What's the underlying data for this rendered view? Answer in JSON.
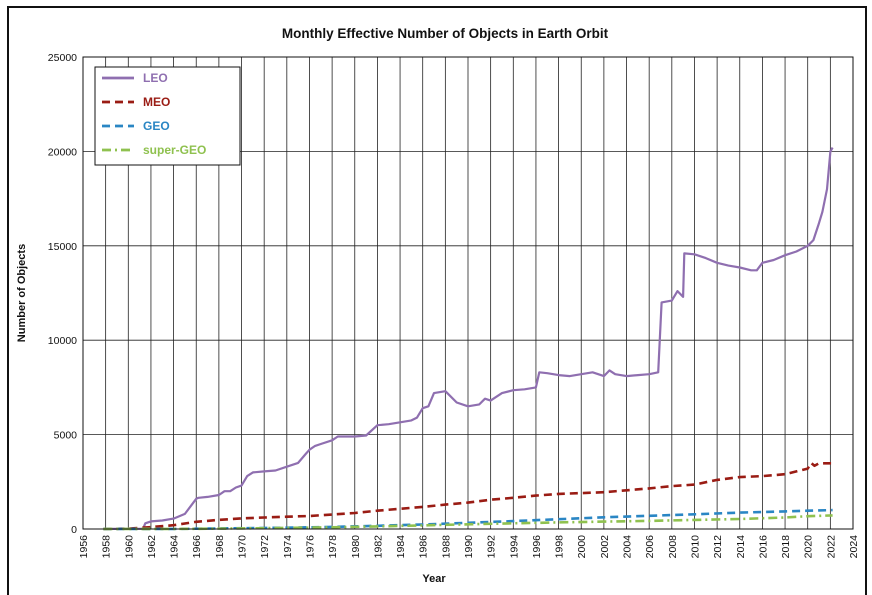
{
  "chart_data": {
    "type": "line",
    "title": "Monthly Effective Number of Objects in Earth Orbit",
    "xlabel": "Year",
    "ylabel": "Number of Objects",
    "xlim": [
      1956,
      2024
    ],
    "ylim": [
      0,
      25000
    ],
    "x_ticks": [
      "1956",
      "1958",
      "1960",
      "1962",
      "1964",
      "1966",
      "1968",
      "1970",
      "1972",
      "1974",
      "1976",
      "1978",
      "1980",
      "1982",
      "1984",
      "1986",
      "1988",
      "1990",
      "1992",
      "1994",
      "1996",
      "1998",
      "2000",
      "2002",
      "2004",
      "2006",
      "2008",
      "2010",
      "2012",
      "2014",
      "2016",
      "2018",
      "2020",
      "2022",
      "2024"
    ],
    "y_ticks": [
      "0",
      "5000",
      "10000",
      "15000",
      "20000",
      "25000"
    ],
    "grid": true,
    "legend_position": "top-left",
    "series": [
      {
        "name": "LEO",
        "color": "#8f6fb0",
        "style": "solid",
        "x": [
          1957.8,
          1961.3,
          1961.5,
          1962,
          1963,
          1964,
          1965,
          1966,
          1966.2,
          1967,
          1968,
          1968.5,
          1969,
          1969.5,
          1970,
          1970.5,
          1971,
          1972,
          1973,
          1974,
          1975,
          1975.7,
          1976,
          1976.5,
          1977,
          1978,
          1978.5,
          1979,
          1980,
          1981,
          1982,
          1983,
          1984,
          1985,
          1985.5,
          1986,
          1986.5,
          1987,
          1988,
          1989,
          1990,
          1991,
          1991.5,
          1992,
          1993,
          1994,
          1995,
          1996,
          1996.3,
          1997,
          1998,
          1999,
          2000,
          2001,
          2002,
          2002.5,
          2003,
          2004,
          2005,
          2006,
          2006.8,
          2007.1,
          2008,
          2008.5,
          2009,
          2009.1,
          2010,
          2011,
          2012,
          2013,
          2014,
          2015,
          2015.5,
          2016,
          2017,
          2018,
          2019,
          2020,
          2020.5,
          2021,
          2021.3,
          2021.7,
          2022,
          2022.2
        ],
        "y": [
          5,
          10,
          300,
          400,
          450,
          550,
          800,
          1600,
          1650,
          1700,
          1800,
          2000,
          2000,
          2200,
          2300,
          2800,
          3000,
          3050,
          3100,
          3300,
          3500,
          4000,
          4200,
          4400,
          4500,
          4700,
          4900,
          4900,
          4900,
          4950,
          5500,
          5550,
          5650,
          5750,
          5900,
          6400,
          6500,
          7200,
          7300,
          6700,
          6500,
          6600,
          6900,
          6800,
          7200,
          7350,
          7400,
          7500,
          8300,
          8250,
          8150,
          8100,
          8200,
          8300,
          8100,
          8400,
          8200,
          8100,
          8150,
          8200,
          8300,
          12000,
          12100,
          12600,
          12300,
          14600,
          14550,
          14350,
          14100,
          13950,
          13850,
          13700,
          13700,
          14100,
          14250,
          14500,
          14700,
          15000,
          15300,
          16200,
          16800,
          18000,
          20000,
          20200
        ]
      },
      {
        "name": "MEO",
        "color": "#9a1c14",
        "style": "dashed",
        "x": [
          1957.8,
          1960,
          1962,
          1964,
          1966,
          1968,
          1970,
          1972,
          1974,
          1976,
          1978,
          1980,
          1982,
          1984,
          1986,
          1988,
          1990,
          1992,
          1994,
          1996,
          1998,
          2000,
          2002,
          2004,
          2006,
          2008,
          2010,
          2012,
          2014,
          2016,
          2018,
          2019,
          2020,
          2020.3,
          2020.6,
          2021,
          2022,
          2022.2
        ],
        "y": [
          0,
          20,
          100,
          200,
          380,
          480,
          560,
          610,
          650,
          690,
          770,
          850,
          970,
          1070,
          1170,
          1290,
          1400,
          1550,
          1650,
          1770,
          1860,
          1900,
          1950,
          2050,
          2150,
          2270,
          2350,
          2600,
          2750,
          2800,
          2900,
          3050,
          3200,
          3500,
          3350,
          3480,
          3480,
          3480
        ]
      },
      {
        "name": "GEO",
        "color": "#2a86c4",
        "style": "dashed",
        "x": [
          1957.8,
          1964,
          1966,
          1970,
          1974,
          1978,
          1982,
          1986,
          1990,
          1994,
          1998,
          2002,
          2006,
          2010,
          2014,
          2018,
          2020,
          2022.2
        ],
        "y": [
          0,
          5,
          15,
          40,
          70,
          110,
          170,
          240,
          330,
          420,
          520,
          620,
          700,
          780,
          870,
          930,
          970,
          1000
        ]
      },
      {
        "name": "super-GEO",
        "color": "#8fc14f",
        "style": "dash-dot",
        "x": [
          1957.8,
          1964,
          1966,
          1970,
          1974,
          1978,
          1982,
          1986,
          1990,
          1994,
          1998,
          2002,
          2006,
          2010,
          2014,
          2018,
          2020,
          2022.2
        ],
        "y": [
          0,
          5,
          10,
          30,
          60,
          90,
          140,
          190,
          250,
          300,
          350,
          390,
          430,
          480,
          530,
          610,
          680,
          720
        ]
      }
    ]
  }
}
